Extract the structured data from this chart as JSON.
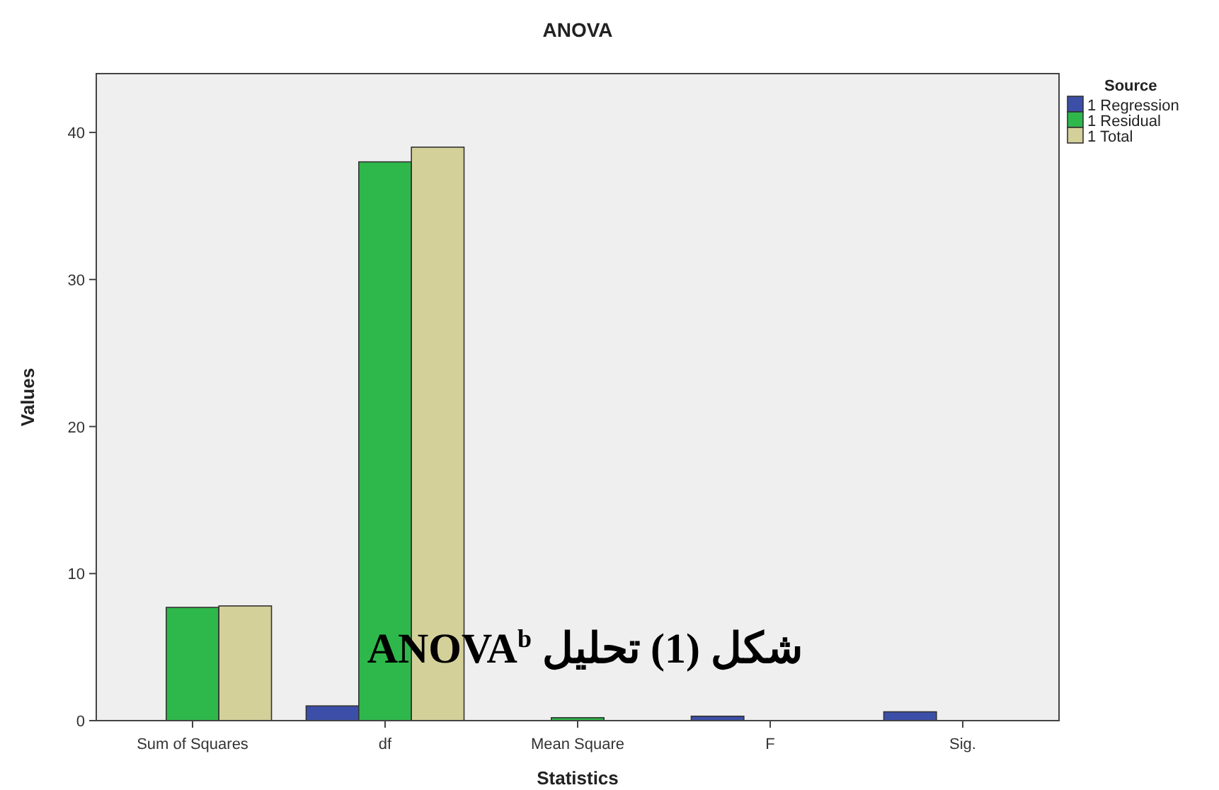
{
  "chart_data": {
    "type": "bar",
    "title": "ANOVA",
    "xlabel": "Statistics",
    "ylabel": "Values",
    "legend_title": "Source",
    "categories": [
      "Sum of Squares",
      "df",
      "Mean Square",
      "F",
      "Sig."
    ],
    "series": [
      {
        "name": "1 Regression",
        "color": "#3c4fa8",
        "values": [
          0,
          1,
          0,
          0.3,
          0.6
        ]
      },
      {
        "name": "1 Residual",
        "color": "#2eb84b",
        "values": [
          7.7,
          38,
          0.2,
          null,
          null
        ]
      },
      {
        "name": "1 Total",
        "color": "#d4d09a",
        "values": [
          7.8,
          39,
          null,
          null,
          null
        ]
      }
    ],
    "ylim": [
      0,
      44
    ],
    "yticks": [
      0,
      10,
      20,
      30,
      40
    ],
    "grid": false,
    "legend": "top right",
    "annotations": [
      "شكل (1) تحليل ANOVA$^{b}$"
    ]
  }
}
